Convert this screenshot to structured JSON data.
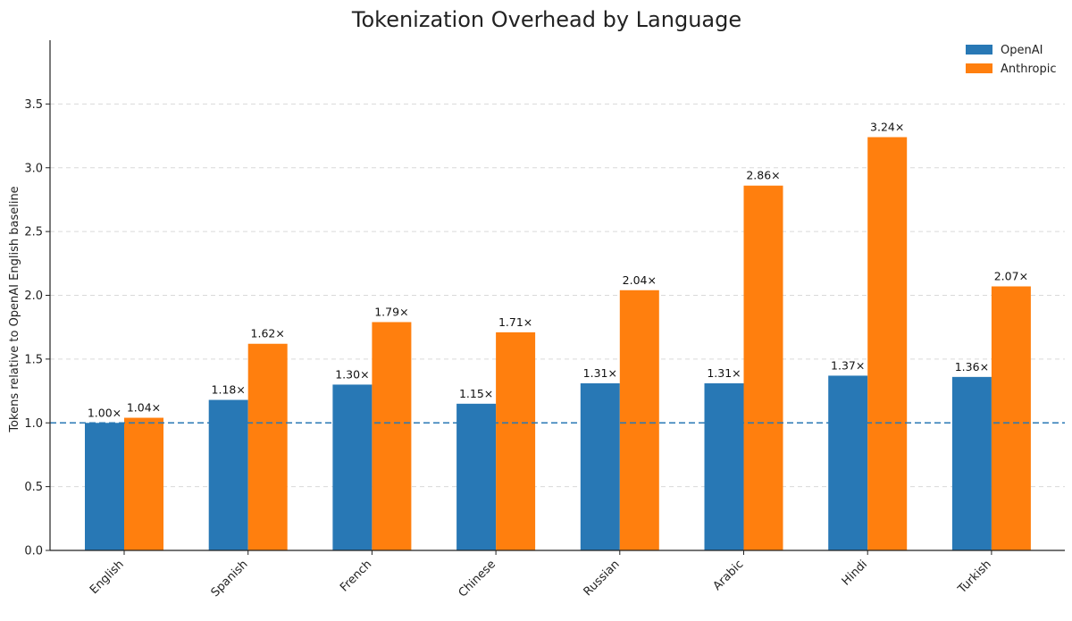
{
  "chart_data": {
    "type": "bar",
    "title": "Tokenization Overhead by Language",
    "xlabel": "",
    "ylabel": "Tokens relative to OpenAI English baseline",
    "categories": [
      "English",
      "Spanish",
      "French",
      "Chinese",
      "Russian",
      "Arabic",
      "Hindi",
      "Turkish"
    ],
    "series": [
      {
        "name": "OpenAI",
        "color": "#2878b5",
        "values": [
          1.0,
          1.18,
          1.3,
          1.15,
          1.31,
          1.31,
          1.37,
          1.36
        ],
        "labels": [
          "1.00×",
          "1.18×",
          "1.30×",
          "1.15×",
          "1.31×",
          "1.31×",
          "1.37×",
          "1.36×"
        ]
      },
      {
        "name": "Anthropic",
        "color": "#ff7f0e",
        "values": [
          1.04,
          1.62,
          1.79,
          1.71,
          2.04,
          2.86,
          3.24,
          2.07
        ],
        "labels": [
          "1.04×",
          "1.62×",
          "1.79×",
          "1.71×",
          "2.04×",
          "2.86×",
          "3.24×",
          "2.07×"
        ]
      }
    ],
    "ylim": [
      0,
      4.0
    ],
    "yticks": [
      "0.0",
      "0.5",
      "1.0",
      "1.5",
      "2.0",
      "2.5",
      "3.0",
      "3.5"
    ],
    "ytick_values": [
      0,
      0.5,
      1.0,
      1.5,
      2.0,
      2.5,
      3.0,
      3.5
    ],
    "grid": true,
    "baseline": 1.0,
    "baseline_color": "#2878b5",
    "legend_position": "top-right"
  }
}
